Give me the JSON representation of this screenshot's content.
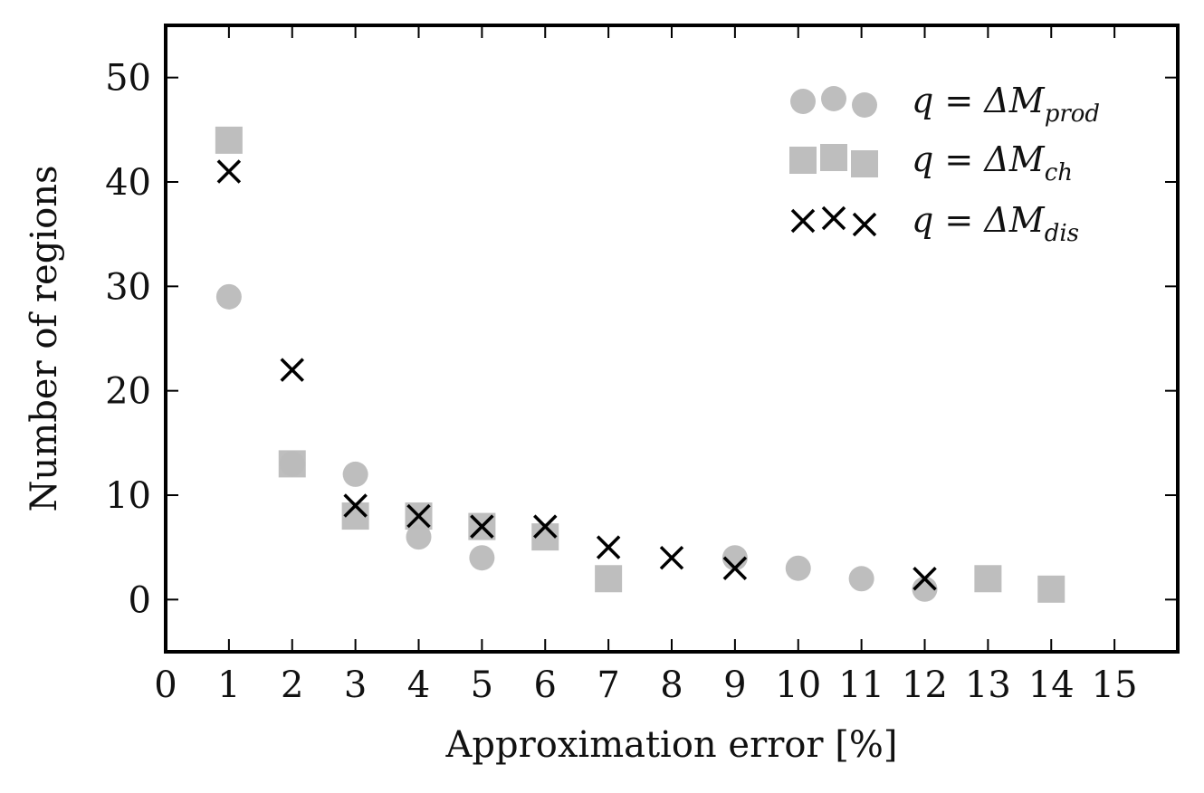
{
  "chart_data": {
    "type": "scatter",
    "xlabel": "Approximation error [%]",
    "ylabel": "Number of regions",
    "xlim": [
      0,
      16
    ],
    "ylim": [
      -5,
      55
    ],
    "xticks": [
      0,
      1,
      2,
      3,
      4,
      5,
      6,
      7,
      8,
      9,
      10,
      11,
      12,
      13,
      14,
      15
    ],
    "yticks": [
      0,
      10,
      20,
      30,
      40,
      50
    ],
    "grid": false,
    "legend_position": "top-right",
    "series": [
      {
        "name_main": "q = ΔM",
        "name_sub": "prod",
        "marker": "circle",
        "color": "#bbbbbb",
        "x": [
          1,
          2,
          3,
          4,
          5,
          9,
          10,
          11,
          12
        ],
        "y": [
          29,
          13,
          12,
          6,
          4,
          4,
          3,
          2,
          1
        ]
      },
      {
        "name_main": "q = ΔM",
        "name_sub": "ch",
        "marker": "square",
        "color": "#bbbbbb",
        "x": [
          1,
          2,
          3,
          4,
          5,
          6,
          7,
          13,
          14
        ],
        "y": [
          44,
          13,
          8,
          8,
          7,
          6,
          2,
          2,
          1
        ]
      },
      {
        "name_main": "q = ΔM",
        "name_sub": "dis",
        "marker": "x",
        "color": "#000000",
        "x": [
          1,
          2,
          3,
          4,
          5,
          6,
          7,
          8,
          9,
          12
        ],
        "y": [
          41,
          22,
          9,
          8,
          7,
          7,
          5,
          4,
          3,
          2
        ]
      }
    ]
  }
}
